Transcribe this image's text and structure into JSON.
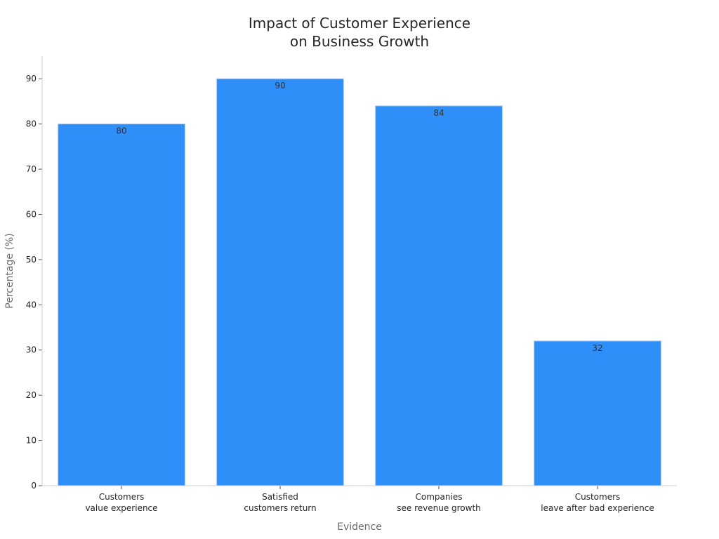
{
  "chart_data": {
    "type": "bar",
    "title": [
      "Impact of Customer Experience",
      "on Business Growth"
    ],
    "xlabel": "Evidence",
    "ylabel": "Percentage (%)",
    "categories": [
      [
        "Customers",
        "value experience"
      ],
      [
        "Satisfied",
        "customers return"
      ],
      [
        "Companies",
        "see revenue growth"
      ],
      [
        "Customers",
        "leave after bad experience"
      ]
    ],
    "values": [
      80,
      90,
      84,
      32
    ],
    "ylim": [
      0,
      95
    ],
    "yticks": [
      0,
      10,
      20,
      30,
      40,
      50,
      60,
      70,
      80,
      90
    ],
    "grid": false,
    "bar_color": "#2e8ff8",
    "bar_edge_color": "#a8cdf7"
  }
}
